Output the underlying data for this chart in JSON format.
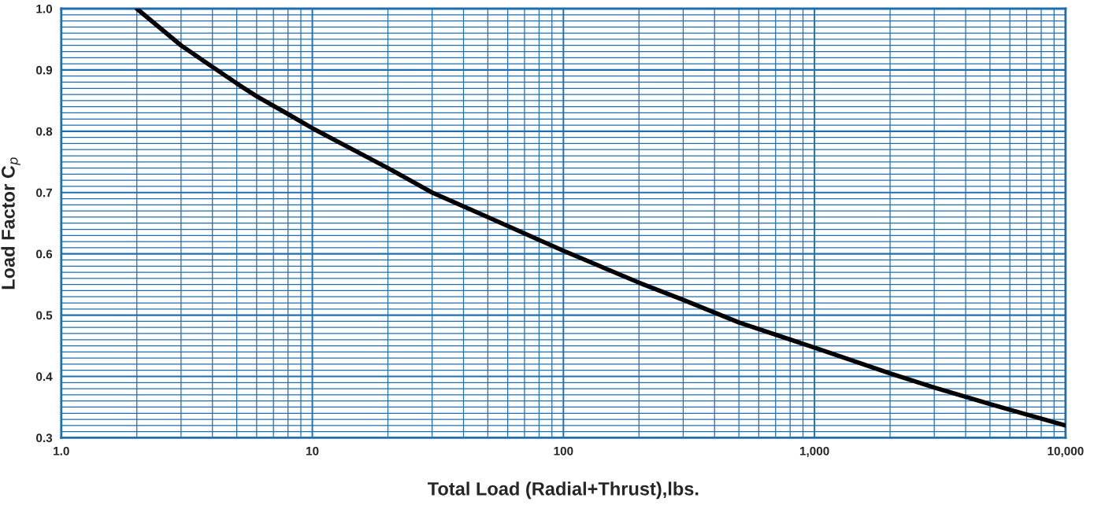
{
  "chart_data": {
    "type": "line",
    "xlabel": "Total Load (Radial+Thrust),lbs.",
    "ylabel": "Load Factor C$_{p}$",
    "log": "x",
    "grid": true,
    "marker": "none",
    "line_style": "solid",
    "xlim": [
      1,
      10000
    ],
    "ylim": [
      0.3,
      1.0
    ],
    "xticks": [
      {
        "value": 1,
        "label": "1.0"
      },
      {
        "value": 2,
        "label": null
      },
      {
        "value": 3,
        "label": null
      },
      {
        "value": 4,
        "label": null
      },
      {
        "value": 5,
        "label": null
      },
      {
        "value": 6,
        "label": null
      },
      {
        "value": 7,
        "label": null
      },
      {
        "value": 8,
        "label": null
      },
      {
        "value": 9,
        "label": null
      },
      {
        "value": 10,
        "label": "10"
      },
      {
        "value": 20,
        "label": null
      },
      {
        "value": 30,
        "label": null
      },
      {
        "value": 40,
        "label": null
      },
      {
        "value": 50,
        "label": null
      },
      {
        "value": 60,
        "label": null
      },
      {
        "value": 70,
        "label": null
      },
      {
        "value": 80,
        "label": null
      },
      {
        "value": 90,
        "label": null
      },
      {
        "value": 100,
        "label": "100"
      },
      {
        "value": 200,
        "label": null
      },
      {
        "value": 300,
        "label": null
      },
      {
        "value": 400,
        "label": null
      },
      {
        "value": 500,
        "label": null
      },
      {
        "value": 600,
        "label": null
      },
      {
        "value": 700,
        "label": null
      },
      {
        "value": 800,
        "label": null
      },
      {
        "value": 900,
        "label": null
      },
      {
        "value": 1000,
        "label": "1,000"
      },
      {
        "value": 2000,
        "label": null
      },
      {
        "value": 3000,
        "label": null
      },
      {
        "value": 4000,
        "label": null
      },
      {
        "value": 5000,
        "label": null
      },
      {
        "value": 6000,
        "label": null
      },
      {
        "value": 7000,
        "label": null
      },
      {
        "value": 8000,
        "label": null
      },
      {
        "value": 9000,
        "label": null
      },
      {
        "value": 10000,
        "label": "10,000"
      }
    ],
    "yticks": [
      0.3,
      {
        "value": 0.31,
        "label": null
      },
      {
        "value": 0.32,
        "label": null
      },
      {
        "value": 0.33,
        "label": null
      },
      {
        "value": 0.34,
        "label": null
      },
      {
        "value": 0.35,
        "label": null
      },
      {
        "value": 0.36,
        "label": null
      },
      {
        "value": 0.37,
        "label": null
      },
      {
        "value": 0.38,
        "label": null
      },
      {
        "value": 0.39,
        "label": null
      },
      0.4,
      {
        "value": 0.41,
        "label": null
      },
      {
        "value": 0.42,
        "label": null
      },
      {
        "value": 0.43,
        "label": null
      },
      {
        "value": 0.44,
        "label": null
      },
      {
        "value": 0.45,
        "label": null
      },
      {
        "value": 0.46,
        "label": null
      },
      {
        "value": 0.47,
        "label": null
      },
      {
        "value": 0.48,
        "label": null
      },
      {
        "value": 0.49,
        "label": null
      },
      0.5,
      {
        "value": 0.51,
        "label": null
      },
      {
        "value": 0.52,
        "label": null
      },
      {
        "value": 0.53,
        "label": null
      },
      {
        "value": 0.54,
        "label": null
      },
      {
        "value": 0.55,
        "label": null
      },
      {
        "value": 0.56,
        "label": null
      },
      {
        "value": 0.57,
        "label": null
      },
      {
        "value": 0.58,
        "label": null
      },
      {
        "value": 0.59,
        "label": null
      },
      0.6,
      {
        "value": 0.61,
        "label": null
      },
      {
        "value": 0.62,
        "label": null
      },
      {
        "value": 0.63,
        "label": null
      },
      {
        "value": 0.64,
        "label": null
      },
      {
        "value": 0.65,
        "label": null
      },
      {
        "value": 0.66,
        "label": null
      },
      {
        "value": 0.67,
        "label": null
      },
      {
        "value": 0.68,
        "label": null
      },
      {
        "value": 0.69,
        "label": null
      },
      0.7,
      {
        "value": 0.71,
        "label": null
      },
      {
        "value": 0.72,
        "label": null
      },
      {
        "value": 0.73,
        "label": null
      },
      {
        "value": 0.74,
        "label": null
      },
      {
        "value": 0.75,
        "label": null
      },
      {
        "value": 0.76,
        "label": null
      },
      {
        "value": 0.77,
        "label": null
      },
      {
        "value": 0.78,
        "label": null
      },
      {
        "value": 0.79,
        "label": null
      },
      0.8,
      {
        "value": 0.81,
        "label": null
      },
      {
        "value": 0.82,
        "label": null
      },
      {
        "value": 0.83,
        "label": null
      },
      {
        "value": 0.84,
        "label": null
      },
      {
        "value": 0.85,
        "label": null
      },
      {
        "value": 0.86,
        "label": null
      },
      {
        "value": 0.87,
        "label": null
      },
      {
        "value": 0.88,
        "label": null
      },
      {
        "value": 0.89,
        "label": null
      },
      0.9,
      {
        "value": 0.91,
        "label": null
      },
      {
        "value": 0.92,
        "label": null
      },
      {
        "value": 0.93,
        "label": null
      },
      {
        "value": 0.94,
        "label": null
      },
      {
        "value": 0.95,
        "label": null
      },
      {
        "value": 0.96,
        "label": null
      },
      {
        "value": 0.97,
        "label": null
      },
      {
        "value": 0.98,
        "label": null
      },
      {
        "value": 0.99,
        "label": null
      },
      {
        "value": 1.0,
        "label": "1.0"
      }
    ],
    "series": [
      {
        "color": "#000000",
        "x": [
          2,
          3,
          4,
          5,
          6,
          8,
          10,
          20,
          30,
          50,
          100,
          200,
          300,
          500,
          1000,
          2000,
          3000,
          5000,
          7000,
          10000
        ],
        "values": [
          1.0,
          0.94,
          0.905,
          0.878,
          0.857,
          0.828,
          0.805,
          0.74,
          0.7,
          0.66,
          0.605,
          0.553,
          0.525,
          0.488,
          0.447,
          0.405,
          0.382,
          0.355,
          0.338,
          0.32
        ]
      }
    ]
  }
}
